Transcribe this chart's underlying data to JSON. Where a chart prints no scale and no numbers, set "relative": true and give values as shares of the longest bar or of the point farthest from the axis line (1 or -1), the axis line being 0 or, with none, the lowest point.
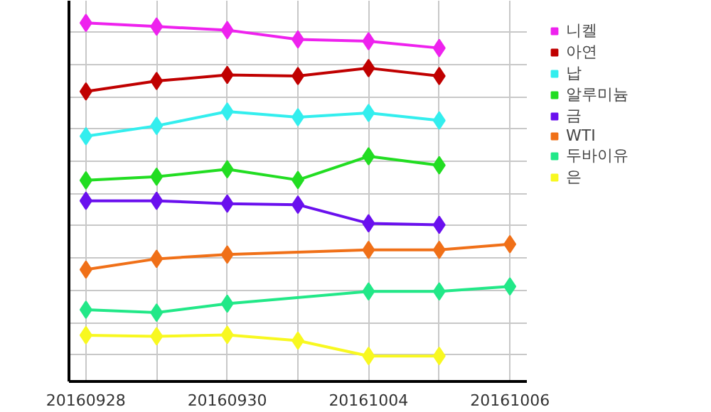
{
  "chart_data": {
    "type": "line",
    "relative": true,
    "categories": [
      "20160928",
      null,
      "20160930",
      null,
      "20161004",
      null,
      "20161006"
    ],
    "series": [
      {
        "name": "니켈",
        "color": "#ee22ee",
        "values": [
          1.0,
          0.99,
          0.98,
          0.954,
          0.949,
          0.93,
          null
        ]
      },
      {
        "name": "아연",
        "color": "#c00000",
        "values": [
          0.809,
          0.838,
          0.855,
          0.852,
          0.874,
          0.852,
          null
        ]
      },
      {
        "name": "납",
        "color": "#33eeee",
        "values": [
          0.684,
          0.713,
          0.753,
          0.737,
          0.749,
          0.728,
          null
        ]
      },
      {
        "name": "알루미늄",
        "color": "#22dd22",
        "values": [
          0.561,
          0.571,
          0.592,
          0.562,
          0.628,
          0.603,
          null
        ]
      },
      {
        "name": "금",
        "color": "#6a10ee",
        "values": [
          0.504,
          0.504,
          0.496,
          0.493,
          0.441,
          0.437,
          null
        ]
      },
      {
        "name": "WTI",
        "color": "#f07018",
        "values": [
          0.312,
          0.342,
          0.354,
          null,
          0.367,
          0.367,
          0.383
        ]
      },
      {
        "name": "두바이유",
        "color": "#22e888",
        "values": [
          0.2,
          0.192,
          0.217,
          null,
          0.251,
          0.251,
          0.265
        ]
      },
      {
        "name": "은",
        "color": "#f8f820",
        "values": [
          0.129,
          0.126,
          0.13,
          0.114,
          0.071,
          0.071,
          null
        ]
      }
    ],
    "marker": "diamond",
    "grid": true,
    "legend": "right"
  }
}
